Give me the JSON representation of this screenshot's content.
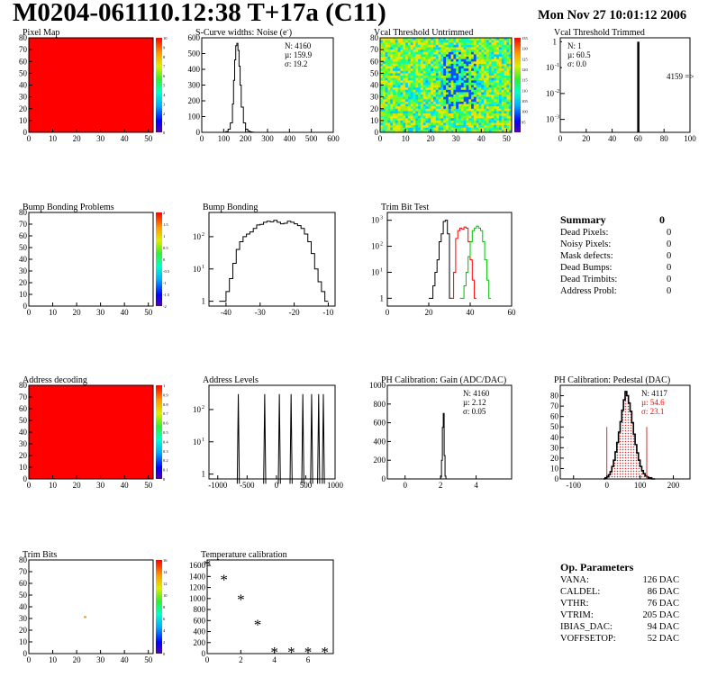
{
  "page": {
    "title": "M0204-061110.12:38 T+17a (C11)",
    "date": "Mon Nov 27 10:01:12 2006"
  },
  "summary": {
    "title": "Summary",
    "value": "0",
    "rows": [
      {
        "label": "Dead Pixels:",
        "value": "0"
      },
      {
        "label": "Noisy Pixels:",
        "value": "0"
      },
      {
        "label": "Mask defects:",
        "value": "0"
      },
      {
        "label": "Dead Bumps:",
        "value": "0"
      },
      {
        "label": "Dead Trimbits:",
        "value": "0"
      },
      {
        "label": "Address Probl:",
        "value": "0"
      }
    ]
  },
  "op_params": {
    "title": "Op. Parameters",
    "rows": [
      {
        "label": "VANA:",
        "value": "126 DAC"
      },
      {
        "label": "CALDEL:",
        "value": "86 DAC"
      },
      {
        "label": "VTHR:",
        "value": "76 DAC"
      },
      {
        "label": "VTRIM:",
        "value": "205 DAC"
      },
      {
        "label": "IBIAS_DAC:",
        "value": "94 DAC"
      },
      {
        "label": "VOFFSETOP:",
        "value": "52 DAC"
      }
    ]
  },
  "colors": {
    "red": "#ff0000",
    "black": "#000000",
    "green": "#00c000",
    "orange": "#ff9900",
    "pedestal_fill": "#cc3333"
  },
  "chart_data": [
    {
      "id": "pixel-map",
      "type": "heatmap",
      "title": "Pixel Map",
      "xlim": [
        0,
        52
      ],
      "ylim": [
        0,
        80
      ],
      "xticks": [
        "0",
        "10",
        "20",
        "30",
        "40",
        "50"
      ],
      "yticks": [
        "0",
        "10",
        "20",
        "30",
        "40",
        "50",
        "60",
        "70",
        "80"
      ],
      "fill": "uniform-red",
      "zlim": [
        0,
        10
      ],
      "zticks": [
        "0",
        "1",
        "2",
        "3",
        "4",
        "5",
        "6",
        "7",
        "8",
        "9",
        "10"
      ]
    },
    {
      "id": "scurve",
      "type": "histogram",
      "title": "S-Curve widths: Noise (e",
      "title_sup": "-",
      "title_end": ")",
      "xlim": [
        0,
        600
      ],
      "ylim": [
        0,
        600
      ],
      "xticks": [
        "0",
        "100",
        "200",
        "300",
        "400",
        "500",
        "600"
      ],
      "yticks": [
        "0",
        "100",
        "200",
        "300",
        "400",
        "500",
        "600"
      ],
      "stats": [
        "N: 4160",
        "µ: 159.9",
        "σ: 19.2"
      ],
      "series": [
        {
          "x": [
            100,
            110,
            120,
            130,
            140,
            145,
            150,
            155,
            160,
            165,
            170,
            175,
            180,
            190,
            200,
            210,
            220,
            230,
            240,
            250
          ],
          "values": [
            0,
            5,
            20,
            60,
            180,
            330,
            460,
            550,
            565,
            520,
            420,
            300,
            160,
            60,
            20,
            8,
            3,
            1,
            0,
            0
          ]
        }
      ]
    },
    {
      "id": "vcal-untrimmed",
      "type": "heatmap",
      "title": "Vcal Threshold Untrimmed",
      "xlim": [
        0,
        52
      ],
      "ylim": [
        0,
        80
      ],
      "xticks": [
        "0",
        "10",
        "20",
        "30",
        "40",
        "50"
      ],
      "yticks": [
        "0",
        "10",
        "20",
        "30",
        "40",
        "50",
        "60",
        "70",
        "80"
      ],
      "fill": "noise-blue-green-yellow",
      "zlim": [
        90,
        135
      ],
      "zticks": [
        "95",
        "100",
        "105",
        "110",
        "115",
        "120",
        "125",
        "130",
        "135"
      ]
    },
    {
      "id": "vcal-trimmed",
      "type": "histogram",
      "title": "Vcal Threshold Trimmed",
      "xlim": [
        0,
        100
      ],
      "log_y": true,
      "xticks": [
        "0",
        "20",
        "40",
        "60",
        "80",
        "100"
      ],
      "yticks_exp": [
        "-3",
        "-2",
        "-1",
        ""
      ],
      "stats": [
        "N: 1",
        "µ: 60.5",
        "σ: 0.0"
      ],
      "overflow_label": "4159 =>",
      "series": [
        {
          "x": [
            60
          ],
          "values": [
            1
          ]
        }
      ]
    },
    {
      "id": "bump-problems",
      "type": "heatmap",
      "title": "Bump Bonding Problems",
      "xlim": [
        0,
        52
      ],
      "ylim": [
        0,
        80
      ],
      "xticks": [
        "0",
        "10",
        "20",
        "30",
        "40",
        "50"
      ],
      "yticks": [
        "0",
        "10",
        "20",
        "30",
        "40",
        "50",
        "60",
        "70",
        "80"
      ],
      "fill": "empty",
      "zlim": [
        -2,
        2
      ],
      "zticks": [
        "-2",
        "-1.5",
        "-1",
        "-0.5",
        "0",
        "0.5",
        "1",
        "1.5",
        "2"
      ]
    },
    {
      "id": "bump-bonding",
      "type": "histogram",
      "title": "Bump Bonding",
      "xlim": [
        -45,
        -8
      ],
      "log_y": true,
      "xticks": [
        "-40",
        "-30",
        "-20",
        "-10"
      ],
      "series": [
        {
          "x": [
            -42,
            -40,
            -39,
            -38,
            -37,
            -36,
            -35,
            -34,
            -33,
            -32,
            -31,
            -30,
            -29,
            -28,
            -27,
            -26,
            -25,
            -24,
            -23,
            -22,
            -21,
            -20,
            -19,
            -18,
            -17,
            -16,
            -15,
            -14,
            -13,
            -12,
            -11
          ],
          "values": [
            1,
            2,
            5,
            15,
            40,
            70,
            100,
            120,
            140,
            180,
            230,
            240,
            280,
            300,
            290,
            320,
            280,
            250,
            260,
            300,
            280,
            250,
            220,
            180,
            120,
            70,
            30,
            10,
            4,
            2,
            1
          ]
        }
      ]
    },
    {
      "id": "trim-bit-test",
      "type": "histogram",
      "title": "Trim Bit Test",
      "xlim": [
        0,
        60
      ],
      "log_y": true,
      "xticks": [
        "0",
        "20",
        "40",
        "60"
      ],
      "series": [
        {
          "color": "#000000",
          "x": [
            20,
            22,
            23,
            24,
            25,
            26,
            27,
            28,
            29,
            30
          ],
          "values": [
            1,
            3,
            10,
            30,
            150,
            300,
            900,
            1000,
            300,
            1
          ]
        },
        {
          "color": "#ff0000",
          "x": [
            30,
            32,
            33,
            34,
            35,
            36,
            37,
            38,
            39,
            40,
            41,
            42
          ],
          "values": [
            1,
            10,
            200,
            400,
            500,
            450,
            550,
            500,
            150,
            30,
            5,
            1
          ]
        },
        {
          "color": "#00c000",
          "x": [
            35,
            37,
            38,
            39,
            40,
            41,
            42,
            43,
            44,
            45,
            46,
            47,
            48,
            49
          ],
          "values": [
            1,
            3,
            10,
            40,
            150,
            400,
            500,
            600,
            500,
            400,
            150,
            30,
            5,
            1
          ]
        }
      ]
    },
    {
      "id": "address-decoding",
      "type": "heatmap",
      "title": "Address decoding",
      "xlim": [
        0,
        52
      ],
      "ylim": [
        0,
        80
      ],
      "xticks": [
        "0",
        "10",
        "20",
        "30",
        "40",
        "50"
      ],
      "yticks": [
        "0",
        "10",
        "20",
        "30",
        "40",
        "50",
        "60",
        "70",
        "80"
      ],
      "fill": "uniform-red",
      "zlim": [
        0,
        1
      ],
      "zticks": [
        "0",
        "0.1",
        "0.2",
        "0.3",
        "0.4",
        "0.5",
        "0.6",
        "0.7",
        "0.8",
        "0.9",
        "1"
      ]
    },
    {
      "id": "address-levels",
      "type": "histogram",
      "title": "Address Levels",
      "xlim": [
        -1150,
        1000
      ],
      "log_y": true,
      "xticks": [
        "-1000",
        "-500",
        "0",
        "500",
        "1000"
      ],
      "series": [
        {
          "peaks": [
            -650,
            -200,
            50,
            250,
            450,
            600,
            720,
            800
          ],
          "height": 300
        }
      ]
    },
    {
      "id": "ph-gain",
      "type": "histogram",
      "title": "PH Calibration: Gain (ADC/DAC)",
      "xlim": [
        -1,
        6
      ],
      "ylim": [
        0,
        1000
      ],
      "xticks": [
        "0",
        "2",
        "4"
      ],
      "yticks": [
        "0",
        "200",
        "400",
        "600",
        "800",
        "1000"
      ],
      "stats": [
        "N: 4160",
        "µ: 2.12",
        "σ: 0.05"
      ],
      "series": [
        {
          "x": [
            1.95,
            2.0,
            2.05,
            2.1,
            2.15,
            2.2,
            2.25,
            2.3
          ],
          "values": [
            0,
            20,
            200,
            550,
            700,
            250,
            30,
            0
          ]
        }
      ]
    },
    {
      "id": "ph-pedestal",
      "type": "histogram",
      "title": "PH Calibration: Pedestal (DAC)",
      "xlim": [
        -140,
        250
      ],
      "ylim": [
        0,
        90
      ],
      "xticks": [
        "-100",
        "0",
        "100",
        "200"
      ],
      "yticks": [
        "0",
        "10",
        "20",
        "30",
        "40",
        "50",
        "60",
        "70",
        "80"
      ],
      "stats": [
        "N: 4117",
        "µ: 54.6",
        "σ: 23.1"
      ],
      "fit_range": [
        0,
        120
      ],
      "series": [
        {
          "x": [
            -10,
            -5,
            0,
            5,
            10,
            15,
            20,
            25,
            30,
            35,
            40,
            45,
            50,
            55,
            60,
            65,
            70,
            75,
            80,
            85,
            90,
            95,
            100,
            105,
            110,
            115,
            120,
            125,
            130,
            135,
            140
          ],
          "values": [
            0,
            1,
            2,
            4,
            7,
            12,
            18,
            26,
            35,
            45,
            55,
            66,
            76,
            84,
            80,
            73,
            65,
            54,
            43,
            33,
            25,
            18,
            12,
            8,
            5,
            3,
            2,
            1,
            1,
            0,
            0
          ]
        }
      ]
    },
    {
      "id": "trim-bits",
      "type": "heatmap",
      "title": "Trim Bits",
      "xlim": [
        0,
        52
      ],
      "ylim": [
        0,
        80
      ],
      "xticks": [
        "0",
        "10",
        "20",
        "30",
        "40",
        "50"
      ],
      "yticks": [
        "0",
        "10",
        "20",
        "30",
        "40",
        "50",
        "60",
        "70",
        "80"
      ],
      "fill": "single-pixel",
      "pixel": [
        23,
        31
      ],
      "zlim": [
        0,
        16
      ],
      "zticks": [
        "0",
        "2",
        "4",
        "6",
        "8",
        "10",
        "12",
        "14",
        "16"
      ]
    },
    {
      "id": "temperature",
      "type": "scatter",
      "title": "Temperature calibration",
      "xlim": [
        0,
        7.5
      ],
      "ylim": [
        0,
        1700
      ],
      "xticks": [
        "0",
        "2",
        "4",
        "6"
      ],
      "yticks": [
        "0",
        "200",
        "400",
        "600",
        "800",
        "1000",
        "1200",
        "1400",
        "1600"
      ],
      "series": [
        {
          "x": [
            0,
            1,
            2,
            3,
            4,
            5,
            6,
            7
          ],
          "values": [
            1620,
            1350,
            990,
            530,
            30,
            30,
            30,
            30
          ]
        }
      ]
    }
  ]
}
